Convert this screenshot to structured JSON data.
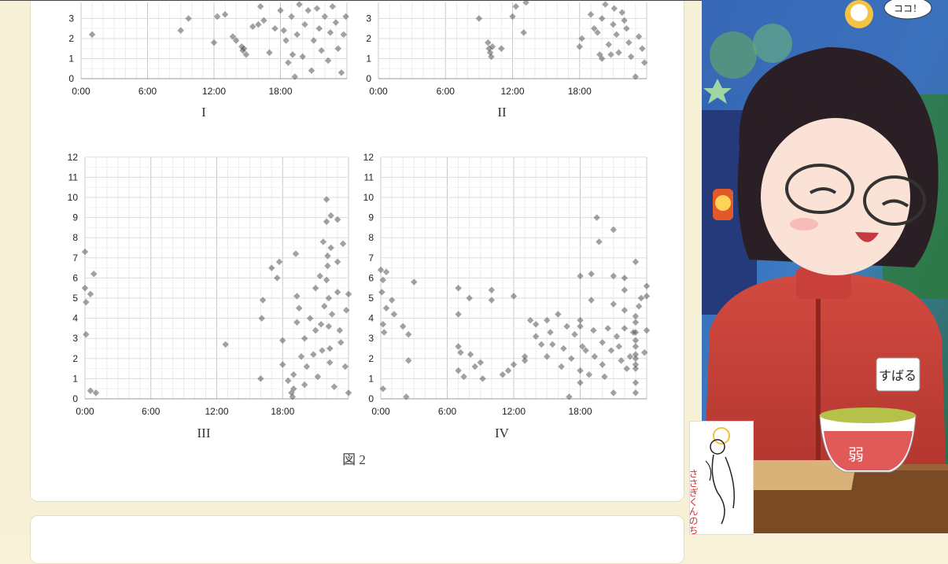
{
  "charts": {
    "x_ticks": [
      "0:00",
      "6:00",
      "12:00",
      "18:00"
    ],
    "top_y_ticks": [
      "0",
      "1",
      "2",
      "3"
    ],
    "bottom_y_ticks": [
      "0",
      "1",
      "2",
      "3",
      "4",
      "5",
      "6",
      "7",
      "8",
      "9",
      "10",
      "11",
      "12"
    ],
    "labels": [
      "I",
      "II",
      "III",
      "IV"
    ]
  },
  "figure_caption": "図 2",
  "overlay": {
    "speech_bubble": "ココ！",
    "name_tag": "すばる",
    "cup_text": "弱",
    "sketch_text": "ささぎくんのちご"
  },
  "colors": {
    "page_bg": "#f6f1d6",
    "point": "#555555",
    "jacket": "#c53a33"
  },
  "chart_data": [
    {
      "type": "scatter",
      "title": "",
      "xlabel": "",
      "ylabel": "",
      "label": "I",
      "xlim": [
        0,
        24
      ],
      "ylim": [
        0,
        3.8
      ],
      "cropped_top": true,
      "points": [
        [
          1,
          2.2
        ],
        [
          9,
          2.4
        ],
        [
          9.7,
          3
        ],
        [
          12,
          1.8
        ],
        [
          12.3,
          3.1
        ],
        [
          13,
          3.2
        ],
        [
          13.7,
          2.1
        ],
        [
          14,
          1.9
        ],
        [
          14.5,
          1.6
        ],
        [
          14.6,
          1.4
        ],
        [
          14.7,
          1.5
        ],
        [
          14.9,
          1.2
        ],
        [
          15.5,
          2.6
        ],
        [
          16,
          2.7
        ],
        [
          16.2,
          3.6
        ],
        [
          16.5,
          2.9
        ],
        [
          17,
          1.3
        ],
        [
          17.5,
          2.5
        ],
        [
          18,
          3.4
        ],
        [
          18.3,
          2.4
        ],
        [
          18.5,
          1.9
        ],
        [
          18.7,
          0.8
        ],
        [
          19,
          3.1
        ],
        [
          19.1,
          1.2
        ],
        [
          19.3,
          0.1
        ],
        [
          19.5,
          2.2
        ],
        [
          19.7,
          3.7
        ],
        [
          20,
          1.1
        ],
        [
          20.2,
          2.7
        ],
        [
          20.5,
          3.4
        ],
        [
          20.8,
          0.4
        ],
        [
          21,
          1.9
        ],
        [
          21.3,
          3.5
        ],
        [
          21.5,
          2.5
        ],
        [
          21.7,
          1.4
        ],
        [
          22,
          3.1
        ],
        [
          22.3,
          0.9
        ],
        [
          22.5,
          2.3
        ],
        [
          22.7,
          3.6
        ],
        [
          23,
          2.8
        ],
        [
          23.2,
          1.5
        ],
        [
          23.5,
          0.3
        ],
        [
          23.7,
          2.2
        ],
        [
          23.9,
          3.1
        ]
      ]
    },
    {
      "type": "scatter",
      "title": "",
      "xlabel": "",
      "ylabel": "",
      "label": "II",
      "xlim": [
        0,
        24
      ],
      "ylim": [
        0,
        3.8
      ],
      "cropped_top": true,
      "points": [
        [
          9,
          3
        ],
        [
          9.8,
          1.8
        ],
        [
          9.9,
          1.5
        ],
        [
          10,
          1.3
        ],
        [
          10.1,
          1.1
        ],
        [
          10.2,
          1.6
        ],
        [
          11,
          1.5
        ],
        [
          12,
          3.1
        ],
        [
          12.3,
          3.6
        ],
        [
          13,
          2.3
        ],
        [
          13.2,
          3.8
        ],
        [
          18,
          1.6
        ],
        [
          18.2,
          2
        ],
        [
          19,
          3.2
        ],
        [
          19.3,
          2.5
        ],
        [
          19.6,
          2.3
        ],
        [
          19.8,
          1.2
        ],
        [
          20,
          1
        ],
        [
          20,
          3
        ],
        [
          20.3,
          3.7
        ],
        [
          20.6,
          1.7
        ],
        [
          20.8,
          1.2
        ],
        [
          21,
          2.7
        ],
        [
          21.1,
          3.5
        ],
        [
          21.3,
          2.2
        ],
        [
          21.5,
          1.3
        ],
        [
          21.8,
          3.3
        ],
        [
          22,
          2.9
        ],
        [
          22.2,
          2.5
        ],
        [
          22.4,
          1.8
        ],
        [
          22.6,
          1.1
        ],
        [
          23,
          0.1
        ],
        [
          23.3,
          2.1
        ],
        [
          23.6,
          1.5
        ],
        [
          23.8,
          0.8
        ]
      ]
    },
    {
      "type": "scatter",
      "title": "",
      "xlabel": "",
      "ylabel": "",
      "label": "III",
      "xlim": [
        0,
        24
      ],
      "ylim": [
        0,
        12
      ],
      "points": [
        [
          0,
          7.3
        ],
        [
          0,
          5.5
        ],
        [
          0.1,
          4.8
        ],
        [
          0.1,
          3.2
        ],
        [
          0.5,
          5.2
        ],
        [
          0.8,
          6.2
        ],
        [
          0.5,
          0.4
        ],
        [
          1,
          0.3
        ],
        [
          12.8,
          2.7
        ],
        [
          16,
          1
        ],
        [
          16.1,
          4
        ],
        [
          16.2,
          4.9
        ],
        [
          17,
          6.5
        ],
        [
          17.5,
          6
        ],
        [
          17.7,
          6.8
        ],
        [
          18,
          2.9
        ],
        [
          18,
          1.7
        ],
        [
          18.5,
          0.9
        ],
        [
          18.8,
          0.3
        ],
        [
          18.9,
          0.1
        ],
        [
          19,
          1.2
        ],
        [
          19,
          0.5
        ],
        [
          19.2,
          7.2
        ],
        [
          19.3,
          5.1
        ],
        [
          19.3,
          3.8
        ],
        [
          19.5,
          4.5
        ],
        [
          19.7,
          2.1
        ],
        [
          20,
          0.7
        ],
        [
          20,
          3
        ],
        [
          20.2,
          1.6
        ],
        [
          20.5,
          4
        ],
        [
          20.8,
          2.2
        ],
        [
          21,
          3.4
        ],
        [
          21,
          5.5
        ],
        [
          21.2,
          1.1
        ],
        [
          21.4,
          6.1
        ],
        [
          21.5,
          3.7
        ],
        [
          21.6,
          2.4
        ],
        [
          21.7,
          7.8
        ],
        [
          21.8,
          4.6
        ],
        [
          22,
          5.9
        ],
        [
          22,
          8.8
        ],
        [
          22,
          9.9
        ],
        [
          22.1,
          7.1
        ],
        [
          22.1,
          6.6
        ],
        [
          22.2,
          5
        ],
        [
          22.2,
          3.6
        ],
        [
          22.3,
          2.5
        ],
        [
          22.3,
          1.8
        ],
        [
          22.4,
          7.5
        ],
        [
          22.4,
          9.1
        ],
        [
          22.5,
          4.2
        ],
        [
          22.7,
          0.6
        ],
        [
          23,
          5.3
        ],
        [
          23,
          8.9
        ],
        [
          23,
          6.8
        ],
        [
          23.2,
          3.4
        ],
        [
          23.3,
          2.8
        ],
        [
          23.5,
          7.7
        ],
        [
          23.7,
          1.6
        ],
        [
          23.8,
          4.4
        ],
        [
          24,
          5.2
        ],
        [
          24,
          0.3
        ]
      ]
    },
    {
      "type": "scatter",
      "title": "",
      "xlabel": "",
      "ylabel": "",
      "label": "IV",
      "xlim": [
        0,
        24
      ],
      "ylim": [
        0,
        12
      ],
      "points": [
        [
          0,
          6.4
        ],
        [
          0.2,
          5.9
        ],
        [
          0.5,
          6.3
        ],
        [
          0.1,
          5.3
        ],
        [
          0.2,
          3.7
        ],
        [
          0.3,
          3.3
        ],
        [
          0.5,
          4.5
        ],
        [
          1,
          4.9
        ],
        [
          1.2,
          4.2
        ],
        [
          2,
          3.6
        ],
        [
          2.5,
          3.2
        ],
        [
          2.5,
          1.9
        ],
        [
          3,
          5.8
        ],
        [
          0.2,
          0.5
        ],
        [
          2.3,
          0.1
        ],
        [
          7,
          5.5
        ],
        [
          7,
          4.2
        ],
        [
          7,
          2.6
        ],
        [
          7.2,
          2.3
        ],
        [
          7,
          1.4
        ],
        [
          7.5,
          1.1
        ],
        [
          8,
          5
        ],
        [
          8.1,
          2.2
        ],
        [
          8.5,
          1.6
        ],
        [
          9,
          1.8
        ],
        [
          9.2,
          1
        ],
        [
          10,
          5.4
        ],
        [
          10,
          4.9
        ],
        [
          11,
          1.2
        ],
        [
          11.5,
          1.4
        ],
        [
          12,
          5.1
        ],
        [
          12,
          1.7
        ],
        [
          13,
          2.1
        ],
        [
          13,
          1.9
        ],
        [
          13.5,
          3.9
        ],
        [
          14,
          3.1
        ],
        [
          14,
          3.7
        ],
        [
          14.5,
          2.7
        ],
        [
          15,
          3.9
        ],
        [
          15,
          2.1
        ],
        [
          15.3,
          3.3
        ],
        [
          15.5,
          2.7
        ],
        [
          16,
          4.2
        ],
        [
          16.3,
          1.6
        ],
        [
          16.5,
          2.5
        ],
        [
          16.8,
          3.6
        ],
        [
          17,
          0.1
        ],
        [
          17.2,
          2
        ],
        [
          17.5,
          3.2
        ],
        [
          18,
          6.1
        ],
        [
          18,
          3.9
        ],
        [
          18,
          3.6
        ],
        [
          18,
          1.4
        ],
        [
          18,
          0.8
        ],
        [
          18.2,
          2.6
        ],
        [
          18.5,
          2.4
        ],
        [
          18.8,
          1.2
        ],
        [
          19,
          6.2
        ],
        [
          19,
          4.9
        ],
        [
          19.2,
          3.4
        ],
        [
          19.3,
          2.1
        ],
        [
          19.5,
          9
        ],
        [
          19.7,
          7.8
        ],
        [
          20,
          2.8
        ],
        [
          20,
          1.7
        ],
        [
          20.2,
          1.1
        ],
        [
          20.5,
          3.5
        ],
        [
          20.8,
          2.4
        ],
        [
          21,
          8.4
        ],
        [
          21,
          6.1
        ],
        [
          21,
          4.7
        ],
        [
          21,
          0.3
        ],
        [
          21.3,
          3.1
        ],
        [
          21.5,
          2.6
        ],
        [
          21.7,
          1.9
        ],
        [
          22,
          6
        ],
        [
          22,
          5.4
        ],
        [
          22,
          4.4
        ],
        [
          22,
          3.5
        ],
        [
          22.2,
          1.5
        ],
        [
          22.5,
          2.1
        ],
        [
          22.8,
          3.3
        ],
        [
          23,
          0.8
        ],
        [
          23,
          0.3
        ],
        [
          23,
          4.1
        ],
        [
          23,
          3.8
        ],
        [
          23,
          3.3
        ],
        [
          23,
          2.9
        ],
        [
          23,
          2.6
        ],
        [
          23,
          2.2
        ],
        [
          23,
          2
        ],
        [
          23,
          1.7
        ],
        [
          23,
          1.5
        ],
        [
          23,
          6.8
        ],
        [
          23.3,
          4.6
        ],
        [
          23.5,
          5
        ],
        [
          23.8,
          2.3
        ],
        [
          24,
          5.6
        ],
        [
          24,
          5.1
        ],
        [
          24,
          3.4
        ]
      ]
    }
  ]
}
